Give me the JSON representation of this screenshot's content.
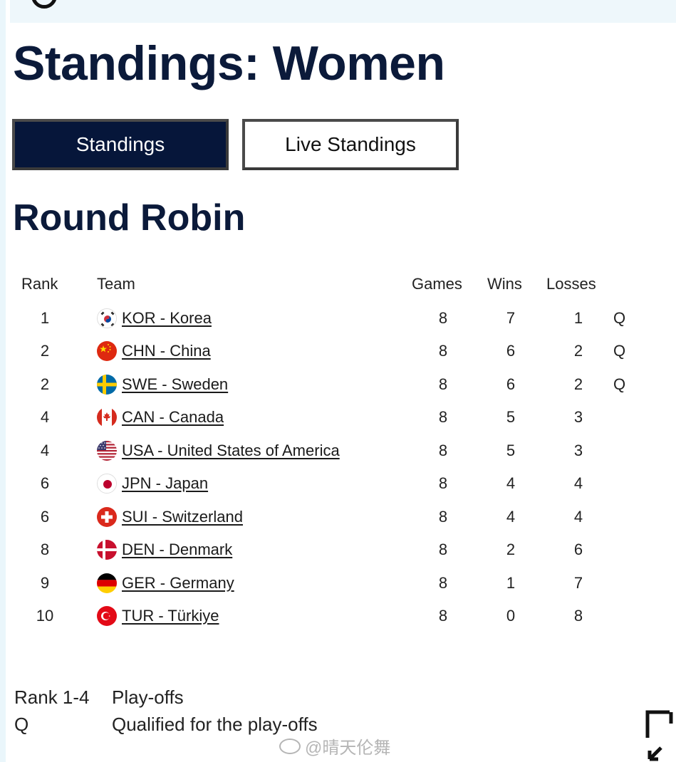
{
  "page": {
    "title": "Standings: Women"
  },
  "tabs": [
    {
      "label": "Standings",
      "active": true
    },
    {
      "label": "Live Standings",
      "active": false
    }
  ],
  "section": {
    "title": "Round Robin"
  },
  "table": {
    "headers": {
      "rank": "Rank",
      "team": "Team",
      "games": "Games",
      "wins": "Wins",
      "losses": "Losses"
    },
    "rows": [
      {
        "rank": "1",
        "team": "KOR - Korea",
        "flag": "korea-flag-icon",
        "games": "8",
        "wins": "7",
        "losses": "1",
        "q": "Q"
      },
      {
        "rank": "2",
        "team": "CHN - China",
        "flag": "china-flag-icon",
        "games": "8",
        "wins": "6",
        "losses": "2",
        "q": "Q"
      },
      {
        "rank": "2",
        "team": "SWE - Sweden",
        "flag": "sweden-flag-icon",
        "games": "8",
        "wins": "6",
        "losses": "2",
        "q": "Q"
      },
      {
        "rank": "4",
        "team": "CAN - Canada",
        "flag": "canada-flag-icon",
        "games": "8",
        "wins": "5",
        "losses": "3",
        "q": ""
      },
      {
        "rank": "4",
        "team": "USA - United States of America",
        "flag": "usa-flag-icon",
        "games": "8",
        "wins": "5",
        "losses": "3",
        "q": ""
      },
      {
        "rank": "6",
        "team": "JPN - Japan",
        "flag": "japan-flag-icon",
        "games": "8",
        "wins": "4",
        "losses": "4",
        "q": ""
      },
      {
        "rank": "6",
        "team": "SUI - Switzerland",
        "flag": "switzerland-flag-icon",
        "games": "8",
        "wins": "4",
        "losses": "4",
        "q": ""
      },
      {
        "rank": "8",
        "team": "DEN - Denmark",
        "flag": "denmark-flag-icon",
        "games": "8",
        "wins": "2",
        "losses": "6",
        "q": ""
      },
      {
        "rank": "9",
        "team": "GER - Germany",
        "flag": "germany-flag-icon",
        "games": "8",
        "wins": "1",
        "losses": "7",
        "q": ""
      },
      {
        "rank": "10",
        "team": "TUR - Türkiye",
        "flag": "turkey-flag-icon",
        "games": "8",
        "wins": "0",
        "losses": "8",
        "q": ""
      }
    ]
  },
  "legend": [
    {
      "key": "Rank 1-4",
      "desc": "Play-offs"
    },
    {
      "key": "Q",
      "desc": "Qualified for the play-offs"
    }
  ],
  "watermark": {
    "text": "@晴天伦舞"
  },
  "colors": {
    "title": "#0b1a3a",
    "active_tab_bg": "#06163a",
    "top_strip": "#eef7fb"
  }
}
